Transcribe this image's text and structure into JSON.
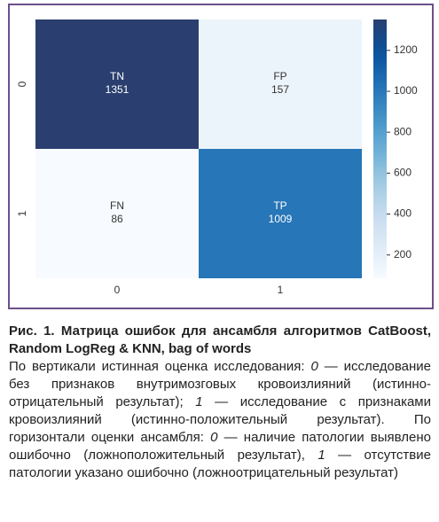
{
  "chart_data": {
    "type": "heatmap",
    "x_categories": [
      "0",
      "1"
    ],
    "y_categories": [
      "0",
      "1"
    ],
    "cell_labels": [
      [
        "TN",
        "FP"
      ],
      [
        "FN",
        "TP"
      ]
    ],
    "values": [
      [
        1351,
        157
      ],
      [
        86,
        1009
      ]
    ],
    "colormap": "Blues",
    "clim": [
      86,
      1351
    ],
    "cticks": [
      200,
      400,
      600,
      800,
      1000,
      1200
    ]
  },
  "caption": {
    "title": "Рис. 1. Матрица ошибок для ансамбля алгоритмов CatBoost, Random LogReg & KNN, bag of words",
    "body": [
      {
        "text": "По вертикали истинная оценка исследования: "
      },
      {
        "text": "0",
        "italic": true
      },
      {
        "text": " — исследование без признаков внутримозговых кровоизлияний (истинно-отрицательный результат); "
      },
      {
        "text": "1",
        "italic": true
      },
      {
        "text": " — исследование с признаками кровоизлияний (истинно-положительный результат). По горизонтали оценки ансамбля: "
      },
      {
        "text": "0",
        "italic": true
      },
      {
        "text": " — наличие патологии выявлено ошибочно (ложноположительный результат), "
      },
      {
        "text": "1",
        "italic": true
      },
      {
        "text": " — отсутствие патологии указано ошибочно (ложноотрицательный результат)"
      }
    ]
  }
}
